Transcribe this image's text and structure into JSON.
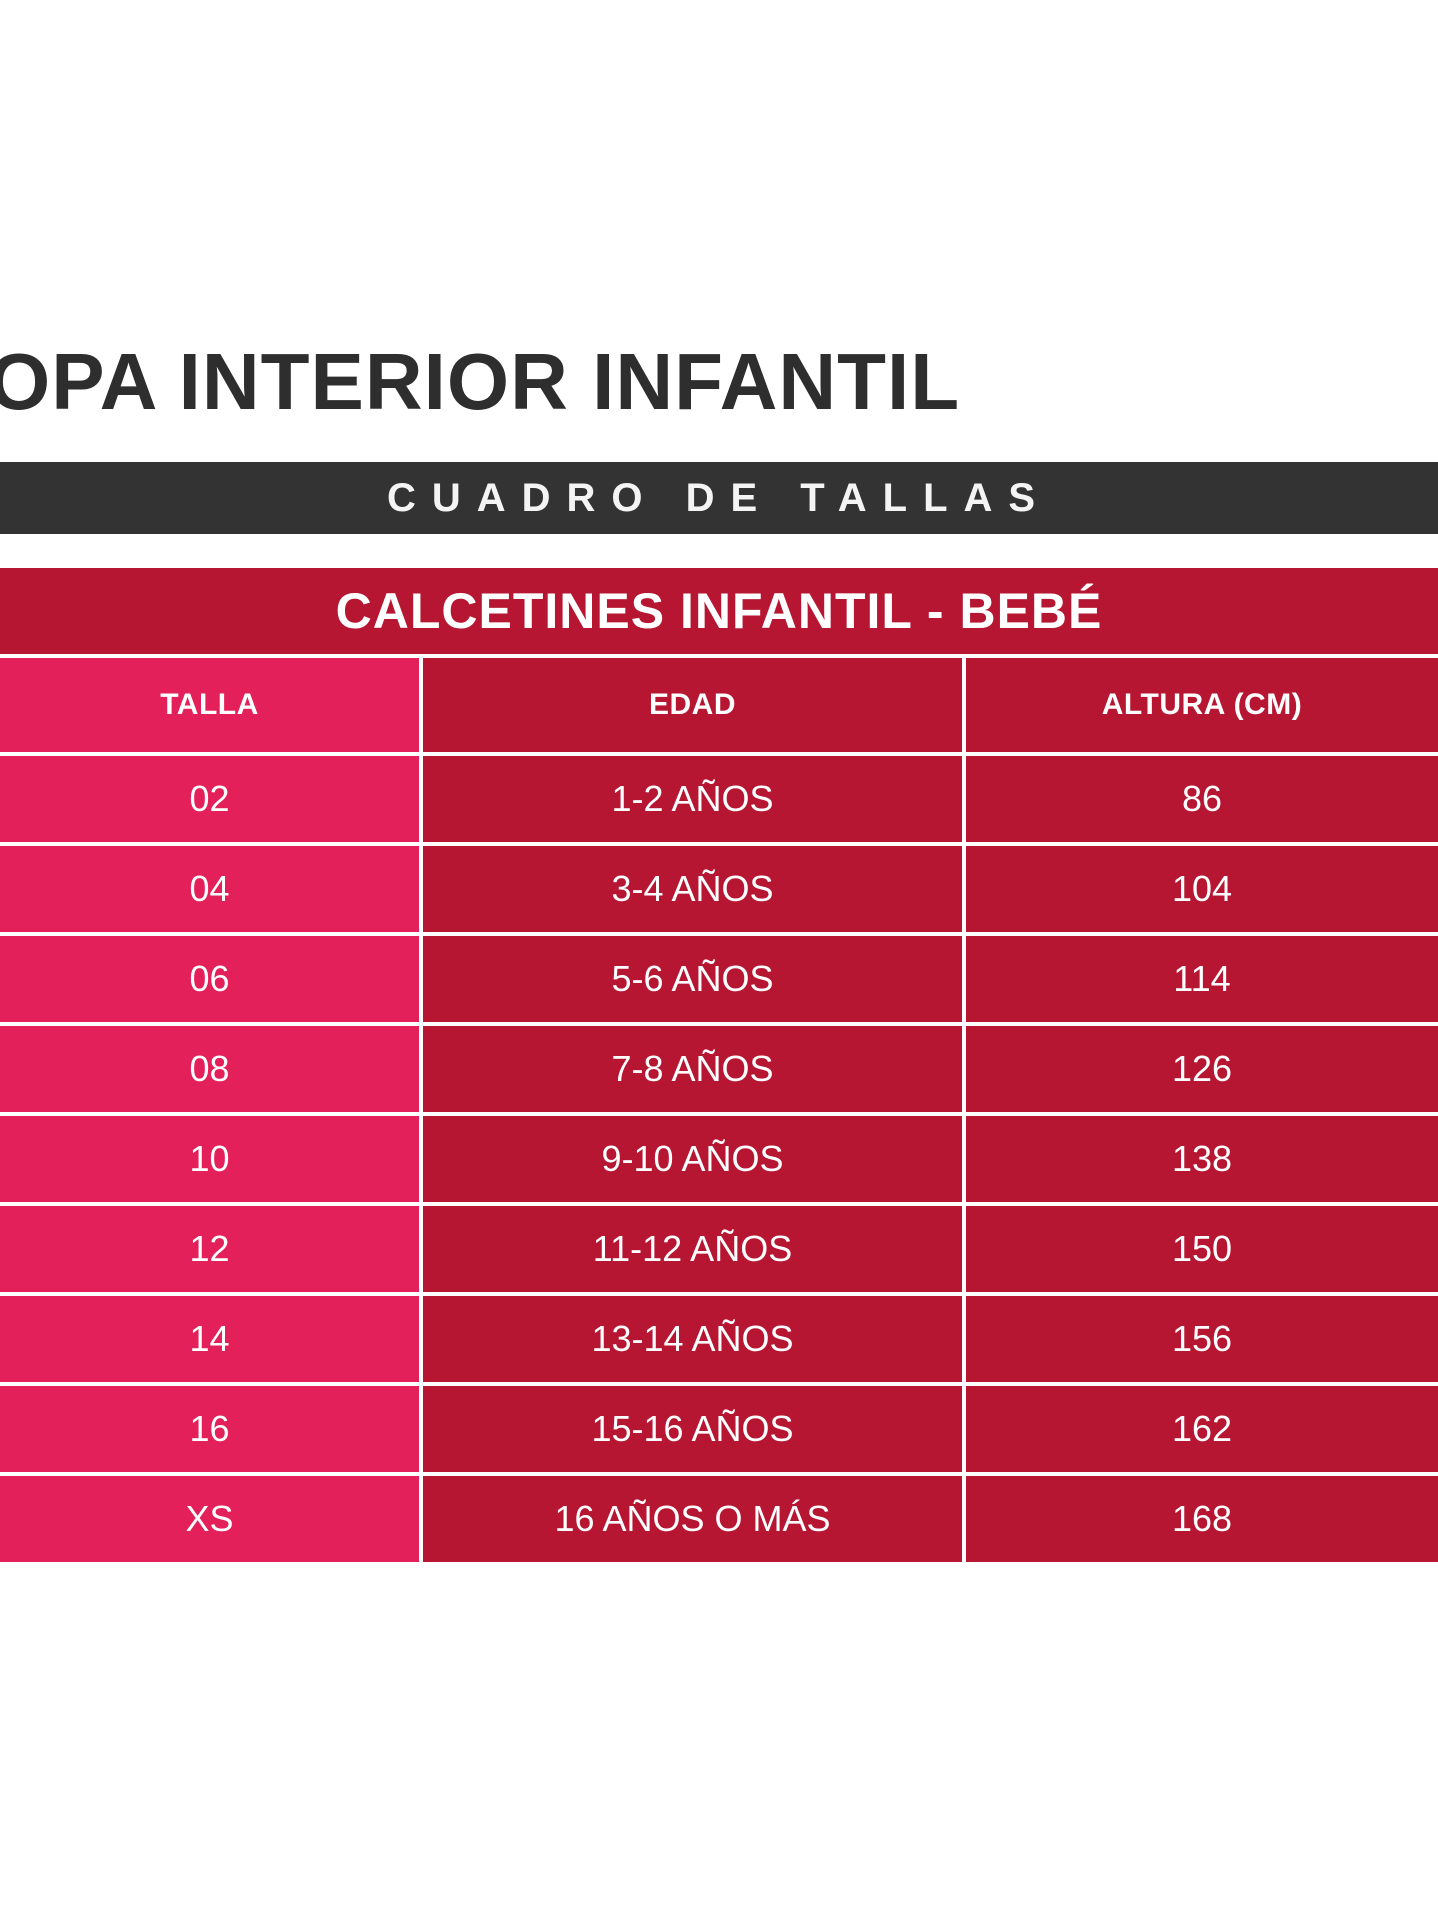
{
  "title": "OPA INTERIOR INFANTIL",
  "banner": "CUADRO DE TALLAS",
  "table": {
    "title": "CALCETINES INFANTIL - BEBÉ",
    "headers": [
      "TALLA",
      "EDAD",
      "ALTURA (CM)"
    ],
    "rows": [
      [
        "02",
        "1-2 AÑOS",
        "86"
      ],
      [
        "04",
        "3-4 AÑOS",
        "104"
      ],
      [
        "06",
        "5-6 AÑOS",
        "114"
      ],
      [
        "08",
        "7-8 AÑOS",
        "126"
      ],
      [
        "10",
        "9-10 AÑOS",
        "138"
      ],
      [
        "12",
        "11-12 AÑOS",
        "150"
      ],
      [
        "14",
        "13-14 AÑOS",
        "156"
      ],
      [
        "16",
        "15-16 AÑOS",
        "162"
      ],
      [
        "XS",
        "16 AÑOS O MÁS",
        "168"
      ]
    ]
  },
  "colors": {
    "title_text": "#2e2e2e",
    "banner_bg": "#333333",
    "talla_col_bg": "#e32059",
    "table_bg": "#b71632"
  }
}
